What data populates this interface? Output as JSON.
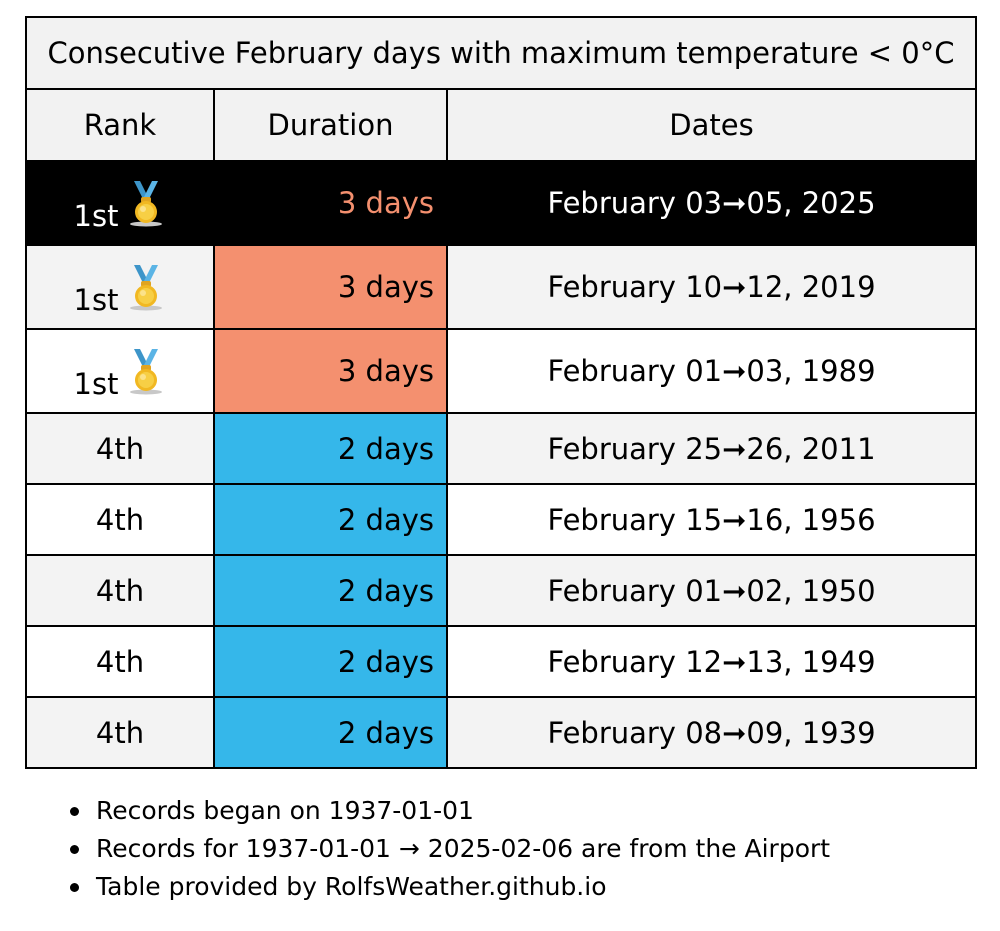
{
  "title": "Consecutive February days with maximum temperature < 0°C",
  "columns": [
    "Rank",
    "Duration",
    "Dates"
  ],
  "colors": {
    "highlight_bg": "#000000",
    "duration_3": "#f4906f",
    "duration_2": "#35b7ea",
    "row_alt": "#f3f3f3"
  },
  "rows": [
    {
      "rank": "1st",
      "duration": "3 days",
      "dates": "February 03➞05, 2025",
      "medal": "gold-medal-icon",
      "current": true
    },
    {
      "rank": "1st",
      "duration": "3 days",
      "dates": "February 10➞12, 2019",
      "medal": "gold-medal-icon",
      "current": false
    },
    {
      "rank": "1st",
      "duration": "3 days",
      "dates": "February 01➞03, 1989",
      "medal": "gold-medal-icon",
      "current": false
    },
    {
      "rank": "4th",
      "duration": "2 days",
      "dates": "February 25➞26, 2011",
      "current": false
    },
    {
      "rank": "4th",
      "duration": "2 days",
      "dates": "February 15➞16, 1956",
      "current": false
    },
    {
      "rank": "4th",
      "duration": "2 days",
      "dates": "February 01➞02, 1950",
      "current": false
    },
    {
      "rank": "4th",
      "duration": "2 days",
      "dates": "February 12➞13, 1949",
      "current": false
    },
    {
      "rank": "4th",
      "duration": "2 days",
      "dates": "February 08➞09, 1939",
      "current": false
    }
  ],
  "notes": [
    "Records began on 1937-01-01",
    "Records for 1937-01-01 → 2025-02-06 are from the Airport",
    "Table provided by RolfsWeather.github.io"
  ]
}
